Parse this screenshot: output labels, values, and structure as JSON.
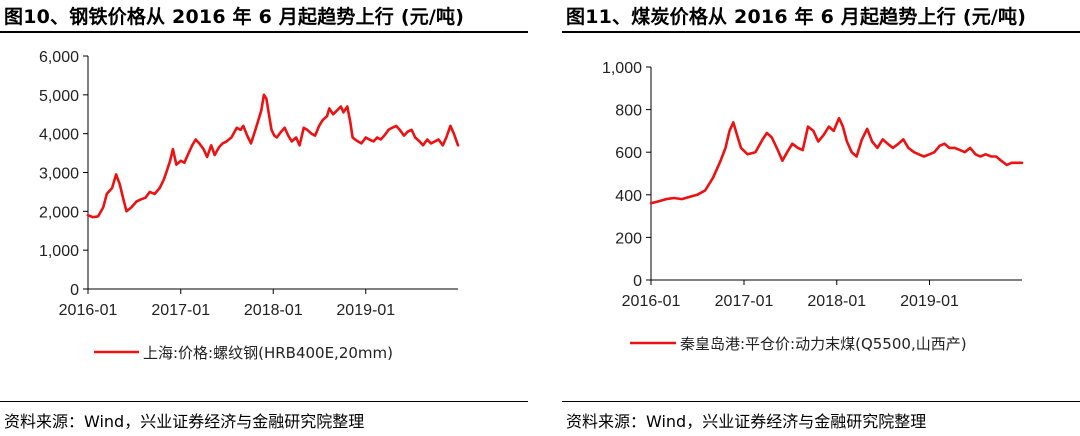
{
  "charts": [
    {
      "title": "图10、钢铁价格从 2016 年 6 月起趋势上行 (元/吨)",
      "source": "资料来源：Wind，兴业证券经济与金融研究院整理",
      "colors": {
        "line": "#ee1111",
        "axis": "#000000"
      },
      "chart_data": {
        "type": "line",
        "title": "图10、钢铁价格从 2016 年 6 月起趋势上行 (元/吨)",
        "xlabel": "",
        "ylabel": "",
        "ylim": [
          0,
          6000
        ],
        "y_ticks": [
          "0",
          "1,000",
          "2,000",
          "3,000",
          "4,000",
          "5,000",
          "6,000"
        ],
        "x_ticks": [
          "2016-01",
          "2017-01",
          "2018-01",
          "2019-01"
        ],
        "x_tick_dates": [
          "2016-01-01",
          "2017-01-01",
          "2018-01-01",
          "2019-01-01"
        ],
        "xlim": [
          "2016-01-01",
          "2019-12-31"
        ],
        "grid": false,
        "legend_position": "bottom",
        "series": [
          {
            "name": "上海:价格:螺纹钢(HRB400E,20mm)",
            "x": [
              "2016-01-01",
              "2016-01-20",
              "2016-02-10",
              "2016-03-01",
              "2016-03-15",
              "2016-04-05",
              "2016-04-21",
              "2016-05-05",
              "2016-05-20",
              "2016-06-01",
              "2016-06-20",
              "2016-07-10",
              "2016-07-25",
              "2016-08-15",
              "2016-09-01",
              "2016-09-20",
              "2016-10-10",
              "2016-10-25",
              "2016-11-05",
              "2016-11-20",
              "2016-12-01",
              "2016-12-15",
              "2017-01-01",
              "2017-01-15",
              "2017-02-01",
              "2017-02-15",
              "2017-03-01",
              "2017-03-15",
              "2017-04-01",
              "2017-04-15",
              "2017-05-01",
              "2017-05-15",
              "2017-06-01",
              "2017-06-15",
              "2017-07-01",
              "2017-07-20",
              "2017-08-10",
              "2017-08-25",
              "2017-09-05",
              "2017-09-20",
              "2017-10-05",
              "2017-10-20",
              "2017-11-01",
              "2017-11-15",
              "2017-11-25",
              "2017-12-05",
              "2017-12-15",
              "2017-12-25",
              "2018-01-05",
              "2018-01-15",
              "2018-02-01",
              "2018-02-15",
              "2018-03-01",
              "2018-03-15",
              "2018-04-01",
              "2018-04-15",
              "2018-05-01",
              "2018-05-15",
              "2018-06-01",
              "2018-06-15",
              "2018-07-01",
              "2018-07-15",
              "2018-08-01",
              "2018-08-10",
              "2018-08-25",
              "2018-09-10",
              "2018-09-25",
              "2018-10-05",
              "2018-10-20",
              "2018-11-01",
              "2018-11-10",
              "2018-11-20",
              "2018-12-01",
              "2018-12-15",
              "2019-01-01",
              "2019-01-15",
              "2019-02-01",
              "2019-02-15",
              "2019-03-01",
              "2019-03-15",
              "2019-04-01",
              "2019-04-15",
              "2019-05-01",
              "2019-05-15",
              "2019-06-01",
              "2019-06-15",
              "2019-07-01",
              "2019-07-15",
              "2019-08-01",
              "2019-08-15",
              "2019-09-01",
              "2019-09-15",
              "2019-10-01",
              "2019-10-15",
              "2019-11-01",
              "2019-11-15",
              "2019-12-01",
              "2019-12-15",
              "2019-12-31"
            ],
            "y": [
              1900,
              1850,
              1870,
              2100,
              2450,
              2600,
              2950,
              2700,
              2300,
              2000,
              2100,
              2250,
              2300,
              2350,
              2500,
              2450,
              2600,
              2800,
              3000,
              3300,
              3600,
              3200,
              3300,
              3250,
              3500,
              3700,
              3850,
              3750,
              3600,
              3400,
              3700,
              3450,
              3650,
              3750,
              3800,
              3900,
              4150,
              4100,
              4200,
              3950,
              3750,
              4050,
              4300,
              4600,
              5000,
              4900,
              4500,
              4100,
              3950,
              3900,
              4050,
              4150,
              3950,
              3800,
              3900,
              3700,
              4150,
              4100,
              4000,
              3950,
              4200,
              4350,
              4450,
              4650,
              4500,
              4600,
              4700,
              4550,
              4700,
              4300,
              3900,
              3850,
              3800,
              3750,
              3900,
              3850,
              3800,
              3900,
              3850,
              3950,
              4100,
              4150,
              4200,
              4100,
              3950,
              4050,
              4100,
              3900,
              3800,
              3700,
              3850,
              3750,
              3800,
              3850,
              3700,
              3900,
              4200,
              4000,
              3700
            ]
          }
        ]
      }
    },
    {
      "title": "图11、煤炭价格从 2016 年 6 月起趋势上行 (元/吨)",
      "source": "资料来源：Wind，兴业证券经济与金融研究院整理",
      "colors": {
        "line": "#ee1111",
        "axis": "#000000"
      },
      "chart_data": {
        "type": "line",
        "title": "图11、煤炭价格从 2016 年 6 月起趋势上行 (元/吨)",
        "xlabel": "",
        "ylabel": "",
        "ylim": [
          0,
          1000
        ],
        "y_ticks": [
          "0",
          "200",
          "400",
          "600",
          "800",
          "1,000"
        ],
        "x_ticks": [
          "2016-01",
          "2017-01",
          "2018-01",
          "2019-01"
        ],
        "x_tick_dates": [
          "2016-01-01",
          "2017-01-01",
          "2018-01-01",
          "2019-01-01"
        ],
        "xlim": [
          "2016-01-01",
          "2019-12-31"
        ],
        "grid": false,
        "legend_position": "bottom",
        "series": [
          {
            "name": "秦皇岛港:平仓价:动力末煤(Q5500,山西产)",
            "x": [
              "2016-01-01",
              "2016-02-01",
              "2016-03-01",
              "2016-04-01",
              "2016-05-01",
              "2016-06-01",
              "2016-07-01",
              "2016-08-01",
              "2016-09-01",
              "2016-10-01",
              "2016-10-20",
              "2016-11-05",
              "2016-11-20",
              "2016-12-05",
              "2016-12-20",
              "2017-01-15",
              "2017-02-15",
              "2017-03-15",
              "2017-04-01",
              "2017-04-20",
              "2017-05-10",
              "2017-06-01",
              "2017-06-20",
              "2017-07-10",
              "2017-08-01",
              "2017-08-20",
              "2017-09-10",
              "2017-10-01",
              "2017-10-20",
              "2017-11-10",
              "2017-12-01",
              "2017-12-20",
              "2018-01-10",
              "2018-01-25",
              "2018-02-10",
              "2018-03-01",
              "2018-03-20",
              "2018-04-10",
              "2018-05-01",
              "2018-05-20",
              "2018-06-10",
              "2018-07-01",
              "2018-07-20",
              "2018-08-10",
              "2018-09-01",
              "2018-09-20",
              "2018-10-10",
              "2018-11-01",
              "2018-11-20",
              "2018-12-10",
              "2019-01-01",
              "2019-01-20",
              "2019-02-10",
              "2019-03-01",
              "2019-03-20",
              "2019-04-10",
              "2019-05-01",
              "2019-05-20",
              "2019-06-10",
              "2019-07-01",
              "2019-07-20",
              "2019-08-10",
              "2019-09-01",
              "2019-09-20",
              "2019-10-10",
              "2019-11-01",
              "2019-11-20",
              "2019-12-10",
              "2019-12-31"
            ],
            "y": [
              360,
              370,
              380,
              385,
              380,
              390,
              400,
              420,
              480,
              560,
              620,
              700,
              740,
              680,
              620,
              590,
              600,
              660,
              690,
              670,
              620,
              560,
              600,
              640,
              620,
              610,
              720,
              700,
              650,
              680,
              720,
              700,
              760,
              720,
              650,
              600,
              580,
              660,
              710,
              650,
              620,
              660,
              640,
              620,
              640,
              660,
              620,
              600,
              590,
              580,
              590,
              600,
              630,
              640,
              620,
              620,
              610,
              600,
              620,
              590,
              580,
              590,
              580,
              580,
              560,
              540,
              550,
              550,
              550
            ]
          }
        ]
      }
    }
  ]
}
